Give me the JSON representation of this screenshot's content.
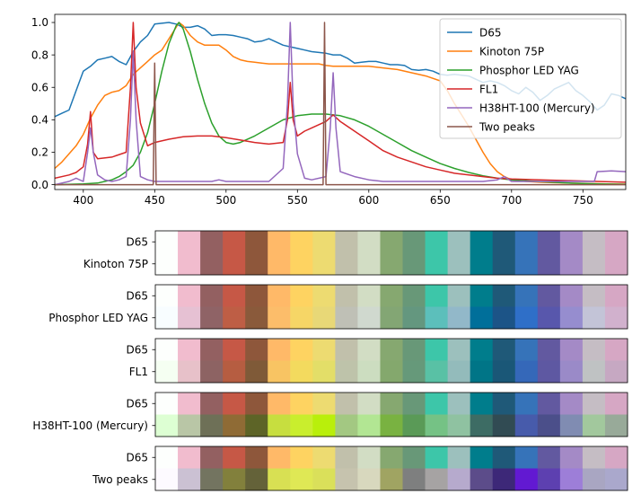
{
  "chart_data": [
    {
      "type": "line",
      "title": "",
      "xlabel": "",
      "ylabel": "",
      "xlim": [
        380,
        780
      ],
      "ylim": [
        -0.03,
        1.05
      ],
      "xticks": [
        400,
        450,
        500,
        550,
        600,
        650,
        700,
        750
      ],
      "yticks": [
        0.0,
        0.2,
        0.4,
        0.6,
        0.8,
        1.0
      ],
      "grid": false,
      "legend_position": "top-right",
      "series": [
        {
          "name": "D65",
          "color": "#1f77b4",
          "x": [
            380,
            385,
            390,
            395,
            400,
            405,
            410,
            415,
            420,
            425,
            430,
            435,
            440,
            445,
            450,
            455,
            460,
            465,
            470,
            475,
            480,
            485,
            490,
            495,
            500,
            505,
            510,
            515,
            520,
            525,
            530,
            535,
            540,
            545,
            550,
            555,
            560,
            565,
            570,
            575,
            580,
            585,
            590,
            595,
            600,
            605,
            610,
            615,
            620,
            625,
            630,
            635,
            640,
            645,
            650,
            655,
            660,
            665,
            670,
            675,
            680,
            685,
            690,
            695,
            700,
            705,
            710,
            715,
            720,
            725,
            730,
            735,
            740,
            745,
            750,
            755,
            760,
            765,
            770,
            775,
            780
          ],
          "y": [
            0.42,
            0.44,
            0.46,
            0.58,
            0.7,
            0.73,
            0.77,
            0.78,
            0.79,
            0.76,
            0.74,
            0.82,
            0.88,
            0.92,
            0.99,
            0.995,
            1.0,
            0.99,
            0.97,
            0.97,
            0.98,
            0.96,
            0.92,
            0.925,
            0.925,
            0.92,
            0.91,
            0.9,
            0.88,
            0.885,
            0.9,
            0.88,
            0.86,
            0.85,
            0.84,
            0.83,
            0.82,
            0.815,
            0.81,
            0.8,
            0.8,
            0.78,
            0.75,
            0.755,
            0.76,
            0.76,
            0.75,
            0.74,
            0.74,
            0.735,
            0.71,
            0.705,
            0.71,
            0.7,
            0.68,
            0.675,
            0.68,
            0.675,
            0.67,
            0.65,
            0.63,
            0.64,
            0.63,
            0.61,
            0.58,
            0.56,
            0.6,
            0.57,
            0.52,
            0.55,
            0.59,
            0.61,
            0.63,
            0.58,
            0.55,
            0.51,
            0.46,
            0.49,
            0.56,
            0.55,
            0.53
          ]
        },
        {
          "name": "Kinoton 75P",
          "color": "#ff7f0e",
          "x": [
            380,
            385,
            390,
            395,
            400,
            405,
            410,
            415,
            420,
            425,
            430,
            435,
            440,
            445,
            450,
            455,
            460,
            465,
            467,
            470,
            475,
            480,
            485,
            490,
            495,
            500,
            505,
            510,
            515,
            520,
            525,
            530,
            535,
            540,
            545,
            550,
            555,
            560,
            565,
            570,
            575,
            580,
            590,
            600,
            610,
            620,
            630,
            640,
            650,
            655,
            660,
            665,
            670,
            675,
            680,
            685,
            690,
            695,
            700,
            710,
            720,
            730,
            740,
            750,
            760,
            770,
            780
          ],
          "y": [
            0.1,
            0.14,
            0.19,
            0.24,
            0.31,
            0.41,
            0.49,
            0.55,
            0.57,
            0.58,
            0.61,
            0.68,
            0.72,
            0.76,
            0.8,
            0.83,
            0.9,
            0.97,
            1.0,
            0.98,
            0.92,
            0.88,
            0.86,
            0.86,
            0.86,
            0.83,
            0.79,
            0.77,
            0.76,
            0.755,
            0.75,
            0.745,
            0.745,
            0.745,
            0.745,
            0.745,
            0.745,
            0.745,
            0.745,
            0.735,
            0.73,
            0.73,
            0.73,
            0.73,
            0.72,
            0.71,
            0.69,
            0.67,
            0.64,
            0.58,
            0.5,
            0.43,
            0.36,
            0.28,
            0.2,
            0.13,
            0.08,
            0.05,
            0.03,
            0.02,
            0.015,
            0.012,
            0.01,
            0.008,
            0.006,
            0.004,
            0.003
          ]
        },
        {
          "name": "Phosphor LED YAG",
          "color": "#2ca02c",
          "x": [
            380,
            400,
            410,
            415,
            420,
            425,
            430,
            435,
            440,
            445,
            450,
            455,
            460,
            465,
            467,
            470,
            475,
            480,
            485,
            490,
            495,
            500,
            505,
            510,
            520,
            530,
            540,
            550,
            560,
            570,
            580,
            590,
            600,
            610,
            620,
            630,
            640,
            650,
            660,
            670,
            680,
            690,
            700,
            720,
            740,
            760,
            780
          ],
          "y": [
            0.0,
            0.005,
            0.01,
            0.02,
            0.03,
            0.05,
            0.08,
            0.12,
            0.2,
            0.32,
            0.5,
            0.7,
            0.87,
            0.98,
            1.0,
            0.96,
            0.82,
            0.65,
            0.5,
            0.38,
            0.3,
            0.26,
            0.25,
            0.26,
            0.3,
            0.35,
            0.4,
            0.425,
            0.435,
            0.435,
            0.425,
            0.4,
            0.36,
            0.31,
            0.26,
            0.21,
            0.17,
            0.13,
            0.1,
            0.075,
            0.055,
            0.04,
            0.03,
            0.018,
            0.01,
            0.005,
            0.002
          ]
        },
        {
          "name": "FL1",
          "color": "#d62728",
          "x": [
            380,
            390,
            395,
            400,
            403,
            405,
            407,
            410,
            420,
            430,
            433,
            435,
            437,
            440,
            445,
            450,
            460,
            470,
            480,
            490,
            500,
            510,
            520,
            530,
            540,
            543,
            545,
            547,
            550,
            555,
            560,
            570,
            575,
            580,
            590,
            600,
            610,
            620,
            630,
            640,
            650,
            660,
            670,
            680,
            690,
            700,
            720,
            740,
            760,
            780
          ],
          "y": [
            0.04,
            0.06,
            0.075,
            0.11,
            0.25,
            0.45,
            0.2,
            0.16,
            0.17,
            0.2,
            0.6,
            1.0,
            0.6,
            0.38,
            0.24,
            0.26,
            0.28,
            0.295,
            0.3,
            0.3,
            0.29,
            0.275,
            0.26,
            0.25,
            0.26,
            0.4,
            0.63,
            0.4,
            0.3,
            0.33,
            0.35,
            0.39,
            0.43,
            0.39,
            0.33,
            0.27,
            0.21,
            0.17,
            0.14,
            0.11,
            0.09,
            0.07,
            0.06,
            0.05,
            0.04,
            0.035,
            0.03,
            0.025,
            0.02,
            0.015
          ]
        },
        {
          "name": "H38HT-100 (Mercury)",
          "color": "#9467bd",
          "x": [
            380,
            390,
            395,
            400,
            403,
            405,
            407,
            410,
            415,
            420,
            425,
            430,
            433,
            435,
            437,
            440,
            445,
            450,
            460,
            470,
            480,
            490,
            495,
            500,
            510,
            520,
            530,
            540,
            543,
            545,
            547,
            550,
            555,
            560,
            570,
            573,
            575,
            577,
            580,
            590,
            600,
            610,
            620,
            630,
            640,
            650,
            660,
            670,
            680,
            690,
            695,
            700,
            720,
            740,
            758,
            760,
            770,
            780
          ],
          "y": [
            0.0,
            0.02,
            0.04,
            0.02,
            0.2,
            0.35,
            0.2,
            0.06,
            0.03,
            0.02,
            0.03,
            0.05,
            0.4,
            0.82,
            0.4,
            0.05,
            0.03,
            0.02,
            0.02,
            0.02,
            0.02,
            0.02,
            0.03,
            0.02,
            0.02,
            0.02,
            0.02,
            0.1,
            0.5,
            1.0,
            0.5,
            0.19,
            0.04,
            0.03,
            0.05,
            0.35,
            0.69,
            0.35,
            0.08,
            0.05,
            0.03,
            0.02,
            0.02,
            0.02,
            0.02,
            0.02,
            0.02,
            0.02,
            0.02,
            0.03,
            0.05,
            0.02,
            0.02,
            0.02,
            0.02,
            0.08,
            0.085,
            0.08
          ]
        },
        {
          "name": "Two peaks",
          "color": "#8c564b",
          "x": [
            380,
            449,
            450,
            451,
            452,
            568,
            569,
            570,
            571,
            780
          ],
          "y": [
            0.0,
            0.0,
            0.75,
            0.0,
            0.0,
            0.0,
            1.0,
            0.0,
            0.0,
            0.0
          ]
        }
      ]
    },
    {
      "type": "heatmap",
      "title": "",
      "reference_label": "D65",
      "reference_swatches": [
        "#fdfffd",
        "#f1bcce",
        "#936061",
        "#c65846",
        "#8e573b",
        "#ffb968",
        "#fed361",
        "#eddb71",
        "#c1c0ab",
        "#d2ddc4",
        "#86a870",
        "#689878",
        "#3dc6a9",
        "#9cc0bd",
        "#007d8c",
        "#1f5978",
        "#3673b9",
        "#6259a0",
        "#a48ac6",
        "#c5bdc4",
        "#d6a7c4"
      ],
      "rows": [
        {
          "label": "Kinoton 75P",
          "swatches": [
            "#fdfffd",
            "#f1bcce",
            "#936061",
            "#c65846",
            "#8e573b",
            "#ffb968",
            "#fed361",
            "#eddb71",
            "#c1c0ab",
            "#d2ddc4",
            "#86a870",
            "#689878",
            "#3dc6a9",
            "#9cc0bd",
            "#007d8c",
            "#1f5978",
            "#3673b9",
            "#6259a0",
            "#a48ac6",
            "#c5bdc4",
            "#d6a7c4"
          ]
        },
        {
          "label": "Phosphor LED YAG",
          "swatches": [
            "#f8fdff",
            "#e6c1d3",
            "#8f6366",
            "#be5e45",
            "#8a5a3b",
            "#fcbd6a",
            "#f6d666",
            "#e8d877",
            "#bfc0b6",
            "#d0d9cf",
            "#83a674",
            "#64977f",
            "#5cbfbb",
            "#92b8c9",
            "#006f9a",
            "#1c5487",
            "#2f6fc8",
            "#5857ac",
            "#968dcf",
            "#c3c4d7",
            "#d1b1cd"
          ]
        },
        {
          "label": "FL1",
          "swatches": [
            "#f5fff2",
            "#e7c1c9",
            "#8d6363",
            "#b65d41",
            "#7f5a38",
            "#f8c463",
            "#f3da5e",
            "#e3de68",
            "#bec3aa",
            "#ccddc0",
            "#84a86d",
            "#66997a",
            "#59c1a5",
            "#93bbbb",
            "#007587",
            "#1a5777",
            "#3568b9",
            "#5e58a2",
            "#9a8ac8",
            "#bfc2c3",
            "#c6a8c2"
          ]
        },
        {
          "label": "H38HT-100 (Mercury)",
          "swatches": [
            "#ddffd3",
            "#b9c6a6",
            "#6e7057",
            "#8f6b35",
            "#5d6427",
            "#c7de3f",
            "#c9ee2d",
            "#b9ef0b",
            "#a3c882",
            "#b2e693",
            "#79b241",
            "#5a9a57",
            "#75c285",
            "#8fc2a1",
            "#3d6c64",
            "#314b53",
            "#475bab",
            "#4b4f8a",
            "#808cb2",
            "#a2c89d",
            "#98aa99"
          ]
        },
        {
          "label": "Two peaks",
          "swatches": [
            "#fdfaff",
            "#cbc1d3",
            "#737460",
            "#82803c",
            "#646239",
            "#d8e053",
            "#dfe855",
            "#dae05a",
            "#c6c3ae",
            "#d8d8be",
            "#a0a462",
            "#7e7f7f",
            "#a6a3a3",
            "#b6aacd",
            "#5c4c8a",
            "#3d2878",
            "#6219d2",
            "#5d40b0",
            "#9d7ed8",
            "#a9a6c2",
            "#aaa8cc"
          ]
        }
      ]
    }
  ]
}
